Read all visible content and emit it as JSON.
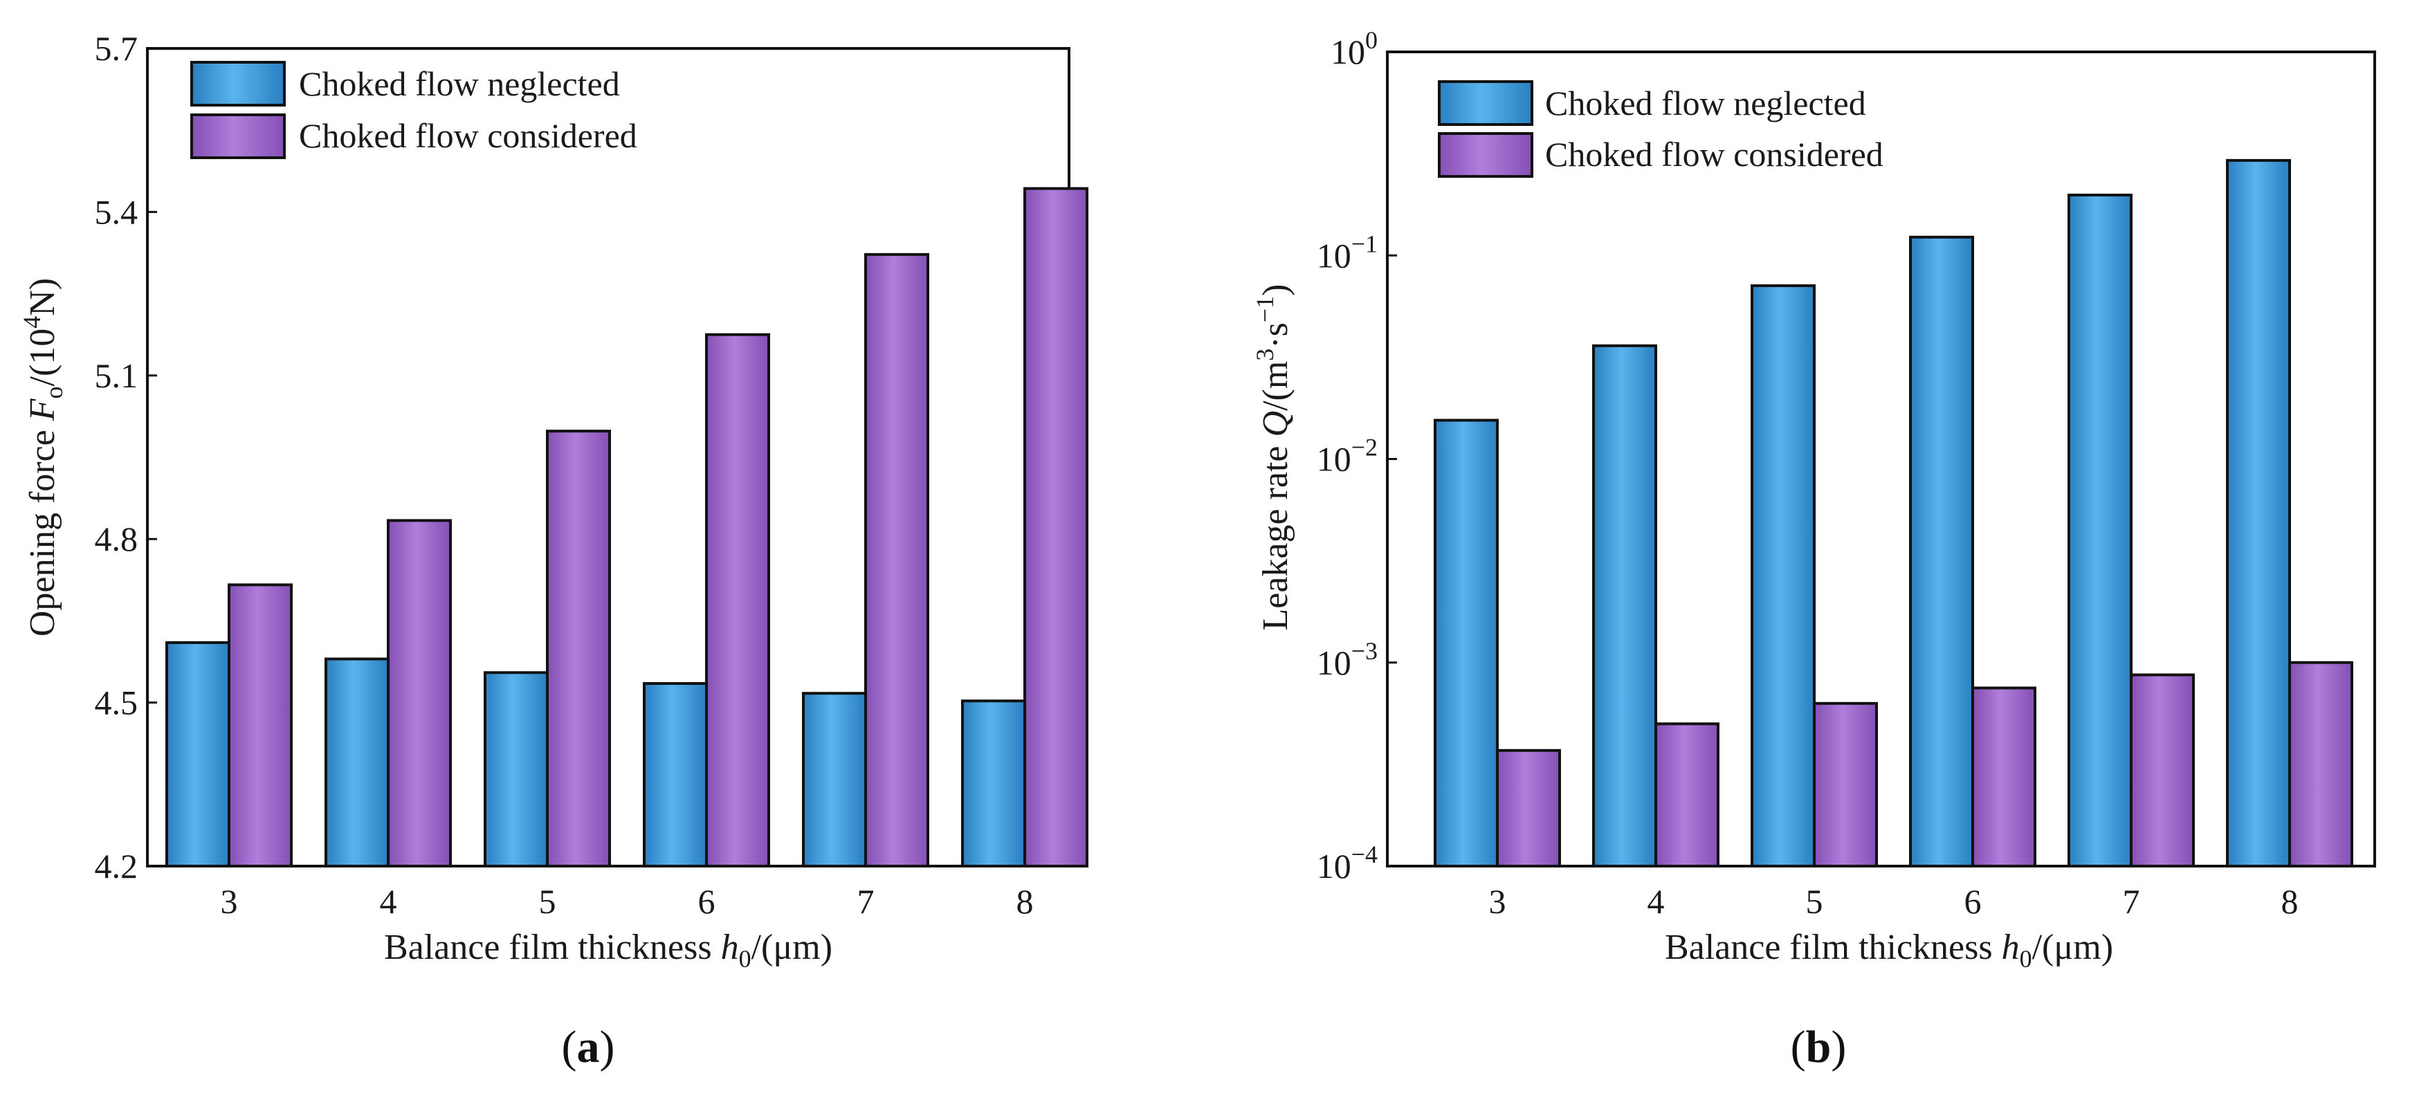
{
  "colors": {
    "neglected": "#3a9ad9",
    "considered": "#9a63c6"
  },
  "chart_data": [
    {
      "type": "bar",
      "panel_label_open": "(",
      "panel_label": "a",
      "panel_label_close": ")",
      "categories": [
        "3",
        "4",
        "5",
        "6",
        "7",
        "8"
      ],
      "series": [
        {
          "name": "Choked flow neglected",
          "values": [
            4.61,
            4.58,
            4.555,
            4.535,
            4.517,
            4.503
          ]
        },
        {
          "name": "Choked flow considered",
          "values": [
            4.716,
            4.834,
            4.998,
            5.175,
            5.322,
            5.443
          ]
        }
      ],
      "ylim": [
        4.2,
        5.7
      ],
      "yscale": "linear",
      "yticks": [
        "4.2",
        "4.5",
        "4.8",
        "5.1",
        "5.4",
        "5.7"
      ],
      "ylabel": {
        "text": "Opening force ",
        "var": "F",
        "sub": "o",
        "text2": "/(10",
        "sup": "4",
        "text3": "N)"
      },
      "xlabel": {
        "text": "Balance film thickness ",
        "var": "h",
        "sub": "0",
        "text2": "/(μm)"
      },
      "legend_position": "top-left"
    },
    {
      "type": "bar",
      "panel_label_open": "(",
      "panel_label": "b",
      "panel_label_close": ")",
      "categories": [
        "3",
        "4",
        "5",
        "6",
        "7",
        "8"
      ],
      "series": [
        {
          "name": "Choked flow neglected",
          "values": [
            0.0155,
            0.036,
            0.071,
            0.123,
            0.198,
            0.293
          ]
        },
        {
          "name": "Choked flow considered",
          "values": [
            0.00037,
            0.0005,
            0.00063,
            0.00075,
            0.00087,
            0.001
          ]
        }
      ],
      "ylim": [
        0.0001,
        1
      ],
      "yscale": "log",
      "yticks": [
        {
          "base": "10",
          "exp": "−4"
        },
        {
          "base": "10",
          "exp": "−3"
        },
        {
          "base": "10",
          "exp": "−2"
        },
        {
          "base": "10",
          "exp": "−1"
        },
        {
          "base": "10",
          "exp": "0"
        }
      ],
      "ylabel": {
        "text": "Leakage rate ",
        "var": "Q",
        "text2": "/(m",
        "sup": "3",
        "text3": "·s",
        "sup2": "−1",
        "text4": ")"
      },
      "xlabel": {
        "text": "Balance film thickness ",
        "var": "h",
        "sub": "0",
        "text2": "/(μm)"
      },
      "legend_position": "top-left"
    }
  ]
}
